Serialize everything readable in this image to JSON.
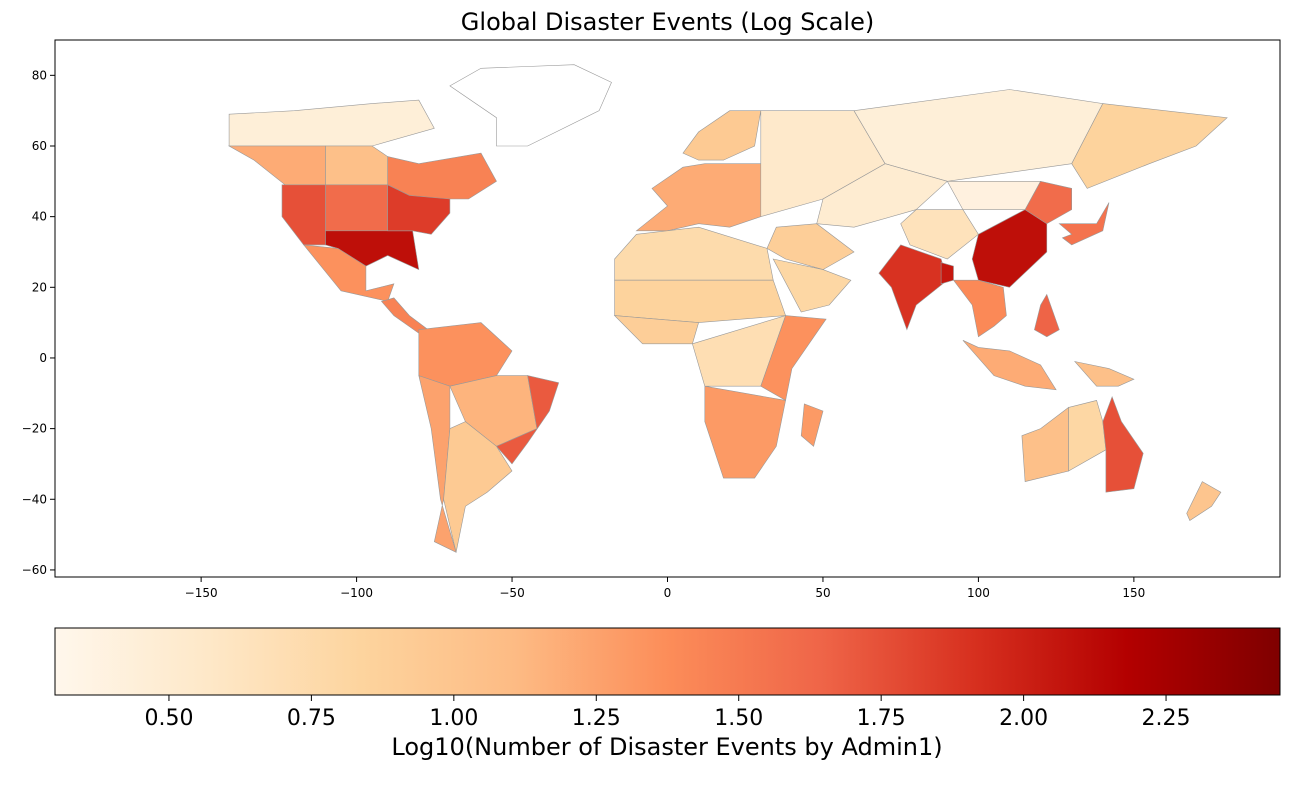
{
  "title": "Global Disaster Events (Log Scale)",
  "map": {
    "projection": "equirectangular",
    "x_range": [
      -197,
      197
    ],
    "y_range": [
      -62,
      90
    ],
    "x_ticks": [
      -150,
      -100,
      -50,
      0,
      50,
      100,
      150
    ],
    "y_ticks": [
      80,
      60,
      40,
      20,
      0,
      -20,
      -40,
      -60
    ],
    "colormap": "OrRd",
    "region_color_values": {
      "canada_north": 0.45,
      "canada_west": 1.2,
      "canada_central": 1.05,
      "canada_east": 1.45,
      "us_west": 1.75,
      "us_mid": 1.6,
      "us_south": 2.1,
      "us_east": 1.85,
      "mexico": 1.35,
      "central_america": 1.45,
      "south_america_north": 1.35,
      "brazil": 1.15,
      "brazil_coast": 1.7,
      "argentina": 0.95,
      "chile": 1.25,
      "europe": 1.2,
      "scandinavia": 0.95,
      "russia_west": 0.55,
      "siberia": 0.45,
      "russia_east": 0.85,
      "africa_north": 0.75,
      "africa_sahel": 0.85,
      "africa_west": 0.9,
      "africa_central": 0.7,
      "africa_east": 1.35,
      "africa_south": 1.3,
      "madagascar": 1.3,
      "middle_east": 0.9,
      "arabia": 0.8,
      "central_asia": 0.5,
      "mongolia": 0.4,
      "india": 1.9,
      "bangladesh": 2.05,
      "china_west": 0.65,
      "china_east": 2.1,
      "china_ne": 1.6,
      "korea_japan": 1.55,
      "se_asia": 1.4,
      "philippines": 1.65,
      "indonesia": 1.2,
      "png": 1.05,
      "aus_west": 1.05,
      "aus_central": 0.8,
      "aus_east": 1.75,
      "new_zealand": 1.0,
      "greenland": 0.0
    }
  },
  "colorbar": {
    "vmin": 0.3,
    "vmax": 2.45,
    "ticks": [
      "0.50",
      "0.75",
      "1.00",
      "1.25",
      "1.50",
      "1.75",
      "2.00",
      "2.25"
    ],
    "tick_values": [
      0.5,
      0.75,
      1.0,
      1.25,
      1.5,
      1.75,
      2.0,
      2.25
    ],
    "label": "Log10(Number of Disaster Events by Admin1)",
    "stops": [
      "#fff7ec",
      "#fee8c8",
      "#fdd49e",
      "#fdbb84",
      "#fc8d59",
      "#ef6548",
      "#d7301f",
      "#b30000",
      "#7f0000"
    ]
  }
}
